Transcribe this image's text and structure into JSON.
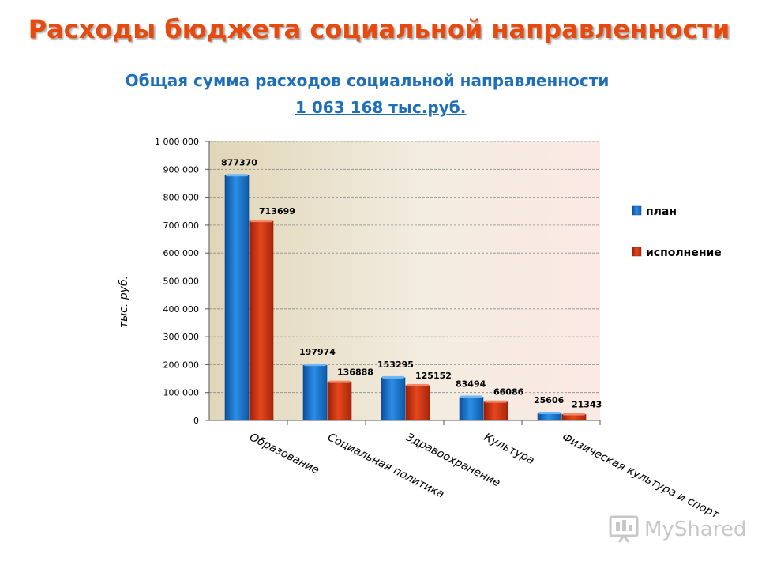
{
  "page": {
    "title": "Расходы бюджета социальной направленности",
    "subtitle": "Общая сумма расходов социальной направленности",
    "total": "1 063 168 тыс.руб.",
    "watermark": "MyShared"
  },
  "colors": {
    "title": "#e8490c",
    "subtitle": "#1f6fb8",
    "plan": "#1f7fd8",
    "execution": "#d93a1a"
  },
  "chart_data": {
    "type": "bar",
    "categories": [
      "Образование",
      "Социальная политика",
      "Здравоохранение",
      "Культура",
      "Физическая культура и спорт"
    ],
    "series": [
      {
        "name": "план",
        "values": [
          877370,
          197974,
          153295,
          83494,
          25606
        ]
      },
      {
        "name": "исполнение",
        "values": [
          713699,
          136888,
          125152,
          66086,
          21343
        ]
      }
    ],
    "ylabel": "тыс. руб.",
    "ylim": [
      0,
      1000000
    ],
    "yticks": [
      0,
      100000,
      200000,
      300000,
      400000,
      500000,
      600000,
      700000,
      800000,
      900000,
      1000000
    ],
    "ytick_labels": [
      "0",
      "100 000",
      "200 000",
      "300 000",
      "400 000",
      "500 000",
      "600 000",
      "700 000",
      "800 000",
      "900 000",
      "1 000 000"
    ],
    "grid": true,
    "legend_position": "right"
  }
}
